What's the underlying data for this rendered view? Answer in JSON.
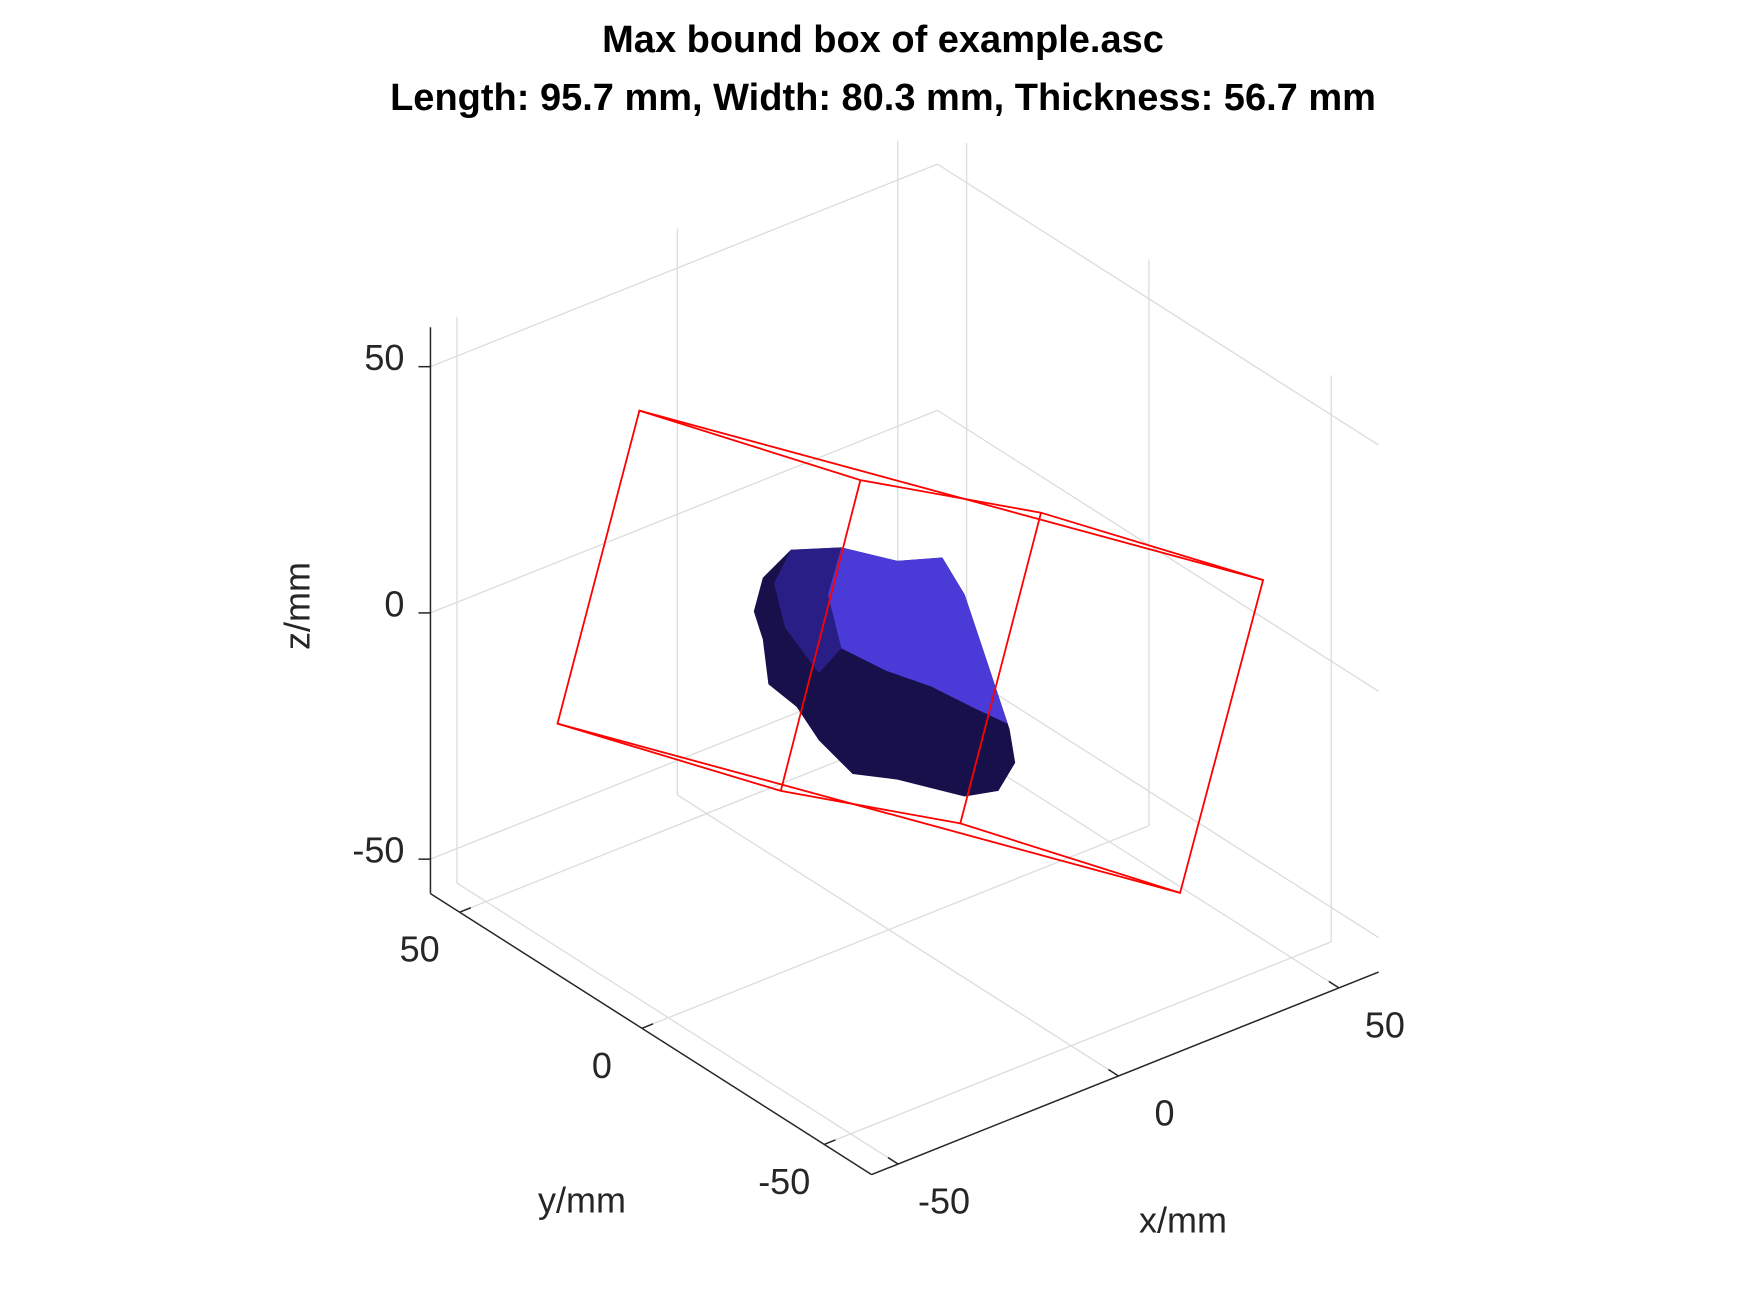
{
  "chart_data": {
    "type": "surface3d",
    "title": "Max bound box of example.asc",
    "subtitle": "Length: 95.7 mm, Width: 80.3 mm, Thickness: 56.7 mm",
    "x_label": "x/mm",
    "y_label": "y/mm",
    "z_label": "z/mm",
    "xlim": [
      -56,
      59
    ],
    "ylim": [
      -63,
      58
    ],
    "zlim": [
      -57,
      58
    ],
    "xticks": [
      -50,
      0,
      50
    ],
    "yticks": [
      -50,
      0,
      50
    ],
    "zticks": [
      -50,
      0,
      50
    ],
    "grid": true,
    "surface_color": "#4a3ad8",
    "box_color": "#ff0000"
  }
}
